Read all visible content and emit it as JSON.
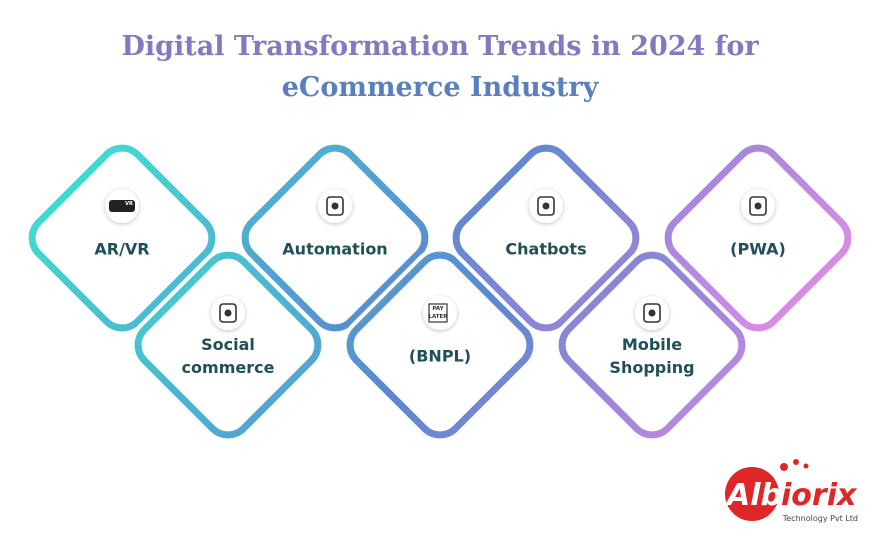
{
  "title": {
    "line1": "Digital Transformation Trends in 2024 for",
    "line2": "eCommerce Industry"
  },
  "items": [
    {
      "label": [
        "AR/VR"
      ]
    },
    {
      "label": [
        "Social",
        "commerce"
      ]
    },
    {
      "label": [
        "Automation"
      ]
    },
    {
      "label": [
        "(BNPL)"
      ],
      "icon_text": [
        "PAY",
        "LATER"
      ]
    },
    {
      "label": [
        "Chatbots"
      ]
    },
    {
      "label": [
        "Mobile",
        "Shopping"
      ]
    },
    {
      "label": [
        "(PWA)"
      ]
    }
  ],
  "vr_icon_text": "VR",
  "logo": {
    "name_a": "Alb",
    "name_b": "iorix",
    "tagline": "Technology Pvt Ltd"
  }
}
